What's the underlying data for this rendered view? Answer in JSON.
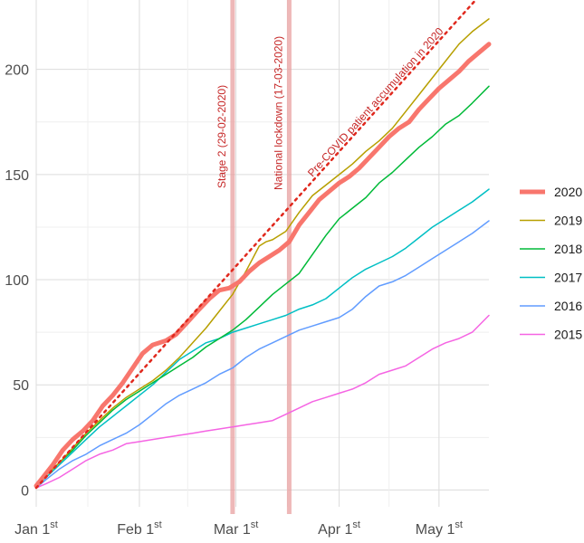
{
  "chart_data": {
    "type": "line",
    "title": "",
    "xlabel": "",
    "ylabel": "",
    "ylim": [
      0,
      225
    ],
    "y_ticks": [
      0,
      50,
      100,
      150,
      200
    ],
    "x_ticks": [
      {
        "day": 1,
        "label": "Jan 1",
        "sup": "st"
      },
      {
        "day": 32,
        "label": "Feb 1",
        "sup": "st"
      },
      {
        "day": 61,
        "label": "Mar 1",
        "sup": "st"
      },
      {
        "day": 92,
        "label": "Apr 1",
        "sup": "st"
      },
      {
        "day": 122,
        "label": "May 1",
        "sup": "st"
      }
    ],
    "xlim": [
      1,
      137
    ],
    "grid": true,
    "legend_position": "right",
    "series": [
      {
        "name": "2020",
        "color": "#f8766d",
        "width": 5,
        "x": [
          1,
          3,
          6,
          9,
          12,
          15,
          18,
          21,
          24,
          27,
          30,
          33,
          36,
          40,
          43,
          46,
          50,
          53,
          56,
          59,
          62,
          65,
          68,
          71,
          74,
          77,
          80,
          83,
          86,
          89,
          92,
          95,
          98,
          101,
          104,
          107,
          110,
          113,
          116,
          119,
          122,
          125,
          128,
          131,
          134,
          137
        ],
        "y": [
          2,
          6,
          12,
          19,
          24,
          28,
          33,
          40,
          45,
          51,
          58,
          65,
          69,
          71,
          74,
          79,
          86,
          91,
          95,
          96,
          99,
          104,
          108,
          111,
          114,
          118,
          126,
          132,
          138,
          142,
          146,
          149,
          153,
          158,
          163,
          168,
          172,
          175,
          181,
          186,
          191,
          195,
          199,
          204,
          208,
          212
        ]
      },
      {
        "name": "2019",
        "color": "#b79f00",
        "width": 1.5,
        "x": [
          1,
          4,
          8,
          12,
          16,
          20,
          24,
          28,
          32,
          36,
          40,
          44,
          48,
          52,
          56,
          60,
          64,
          66,
          68,
          70,
          72,
          76,
          80,
          84,
          88,
          92,
          96,
          100,
          104,
          108,
          112,
          116,
          120,
          124,
          128,
          132,
          137
        ],
        "y": [
          2,
          7,
          13,
          20,
          27,
          33,
          39,
          44,
          48,
          52,
          57,
          63,
          70,
          77,
          85,
          93,
          104,
          110,
          116,
          118,
          119,
          123,
          132,
          140,
          145,
          150,
          155,
          161,
          166,
          172,
          180,
          188,
          196,
          204,
          212,
          218,
          224
        ]
      },
      {
        "name": "2018",
        "color": "#00ba38",
        "width": 1.5,
        "x": [
          1,
          4,
          8,
          12,
          16,
          20,
          24,
          28,
          32,
          36,
          40,
          44,
          48,
          52,
          56,
          60,
          64,
          68,
          72,
          76,
          80,
          84,
          88,
          92,
          96,
          100,
          104,
          108,
          112,
          116,
          120,
          124,
          128,
          132,
          137
        ],
        "y": [
          2,
          7,
          13,
          19,
          26,
          32,
          38,
          43,
          47,
          51,
          55,
          59,
          63,
          68,
          72,
          76,
          81,
          87,
          93,
          98,
          103,
          112,
          121,
          129,
          134,
          139,
          146,
          151,
          157,
          163,
          168,
          174,
          178,
          184,
          192
        ]
      },
      {
        "name": "2017",
        "color": "#00bfc4",
        "width": 1.5,
        "x": [
          1,
          4,
          8,
          12,
          16,
          20,
          24,
          28,
          32,
          36,
          40,
          44,
          48,
          52,
          56,
          60,
          64,
          68,
          72,
          76,
          80,
          84,
          88,
          92,
          96,
          100,
          104,
          108,
          112,
          116,
          120,
          124,
          128,
          132,
          137
        ],
        "y": [
          2,
          6,
          12,
          18,
          24,
          30,
          35,
          40,
          45,
          50,
          56,
          62,
          66,
          70,
          72,
          75,
          77,
          79,
          81,
          83,
          86,
          88,
          91,
          96,
          101,
          105,
          108,
          111,
          115,
          120,
          125,
          129,
          133,
          137,
          143
        ]
      },
      {
        "name": "2016",
        "color": "#619cff",
        "width": 1.5,
        "x": [
          1,
          4,
          8,
          12,
          16,
          20,
          24,
          28,
          32,
          36,
          40,
          44,
          48,
          52,
          56,
          60,
          64,
          68,
          72,
          76,
          80,
          84,
          88,
          92,
          96,
          100,
          104,
          108,
          112,
          116,
          120,
          124,
          128,
          132,
          137
        ],
        "y": [
          1,
          5,
          10,
          14,
          17,
          21,
          24,
          27,
          31,
          36,
          41,
          45,
          48,
          51,
          55,
          58,
          63,
          67,
          70,
          73,
          76,
          78,
          80,
          82,
          86,
          92,
          97,
          99,
          102,
          106,
          110,
          114,
          118,
          122,
          128
        ]
      },
      {
        "name": "2015",
        "color": "#f564e3",
        "width": 1.5,
        "x": [
          1,
          4,
          8,
          12,
          16,
          20,
          24,
          28,
          32,
          36,
          40,
          44,
          48,
          52,
          56,
          60,
          64,
          68,
          72,
          76,
          80,
          84,
          88,
          92,
          96,
          100,
          104,
          108,
          112,
          116,
          120,
          124,
          128,
          132,
          137
        ],
        "y": [
          1,
          3,
          6,
          10,
          14,
          17,
          19,
          22,
          23,
          24,
          25,
          26,
          27,
          28,
          29,
          30,
          31,
          32,
          33,
          36,
          39,
          42,
          44,
          46,
          48,
          51,
          55,
          57,
          59,
          63,
          67,
          70,
          72,
          75,
          83
        ]
      }
    ],
    "projection": {
      "name": "Pre-COVID patient accumulation in 2020",
      "color": "#e0281d",
      "x": [
        1,
        137
      ],
      "y": [
        1,
        240
      ]
    },
    "vlines": [
      {
        "day": 60,
        "label": "Stage 2 (29-02-2020)",
        "color": "#e8a0a0"
      },
      {
        "day": 77,
        "label": "National lockdown (17-03-2020)",
        "color": "#e8a0a0"
      }
    ]
  }
}
